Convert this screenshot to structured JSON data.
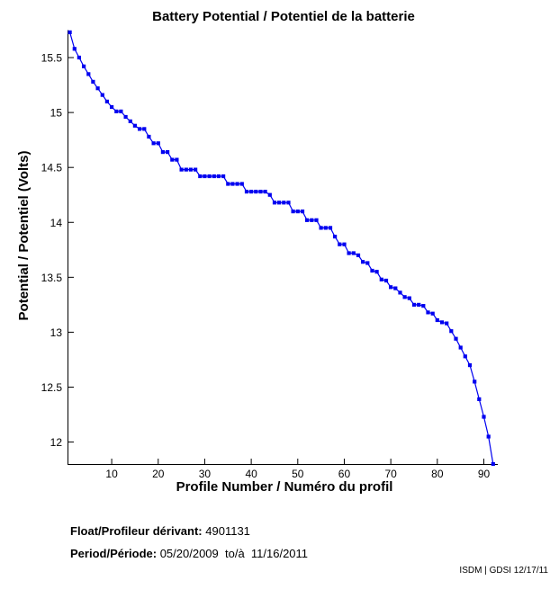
{
  "chart_data": {
    "type": "line",
    "title": "Battery Potential / Potentiel de la batterie",
    "xlabel": "Profile Number / Numéro du profil",
    "ylabel": "Potential / Potentiel (Volts)",
    "xlim": [
      0.5,
      93
    ],
    "ylim": [
      11.8,
      15.75
    ],
    "xticks": [
      10,
      20,
      30,
      40,
      50,
      60,
      70,
      80,
      90
    ],
    "yticks": [
      12,
      12.5,
      13,
      13.5,
      14,
      14.5,
      15,
      15.5
    ],
    "grid": false,
    "legend": null,
    "line_color": "#0000F0",
    "marker": "square",
    "x_start": 1,
    "x_step": 1,
    "values": [
      15.73,
      15.58,
      15.5,
      15.42,
      15.35,
      15.28,
      15.22,
      15.16,
      15.1,
      15.05,
      15.01,
      15.01,
      14.96,
      14.92,
      14.88,
      14.85,
      14.85,
      14.78,
      14.72,
      14.72,
      14.64,
      14.64,
      14.57,
      14.57,
      14.48,
      14.48,
      14.48,
      14.48,
      14.42,
      14.42,
      14.42,
      14.42,
      14.42,
      14.42,
      14.35,
      14.35,
      14.35,
      14.35,
      14.28,
      14.28,
      14.28,
      14.28,
      14.28,
      14.25,
      14.18,
      14.18,
      14.18,
      14.18,
      14.1,
      14.1,
      14.1,
      14.02,
      14.02,
      14.02,
      13.95,
      13.95,
      13.95,
      13.87,
      13.8,
      13.8,
      13.72,
      13.72,
      13.7,
      13.64,
      13.63,
      13.56,
      13.55,
      13.48,
      13.47,
      13.41,
      13.4,
      13.36,
      13.32,
      13.31,
      13.25,
      13.25,
      13.24,
      13.18,
      13.17,
      13.11,
      13.09,
      13.08,
      13.01,
      12.94,
      12.86,
      12.78,
      12.7,
      12.55,
      12.39,
      12.23,
      12.05,
      11.8
    ]
  },
  "annotations": {
    "float_label": "Float/Profileur dérivant:",
    "float_value": "4901131",
    "period_label": "Period/Période:",
    "period_value": "05/20/2009  to/à  11/16/2011",
    "credit": "ISDM | GDSI 12/17/11"
  },
  "colors": {
    "series": "#0000F0",
    "axis": "#000000",
    "background": "#ffffff"
  }
}
